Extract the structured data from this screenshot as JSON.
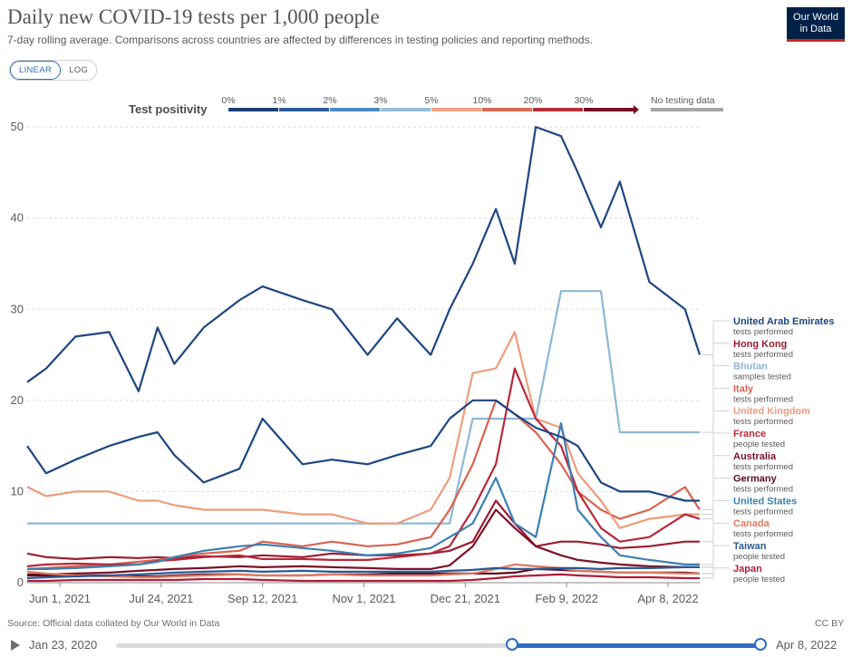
{
  "header": {
    "title": "Daily new COVID-19 tests per 1,000 people",
    "subtitle": "7-day rolling average. Comparisons across countries are affected by differences in testing policies and reporting methods.",
    "logo_line1": "Our World",
    "logo_line2": "in Data",
    "toggle_linear": "LINEAR",
    "toggle_log": "LOG"
  },
  "legend": {
    "label": "Test positivity",
    "bins": [
      {
        "label": "0%",
        "color": "#1c3f73"
      },
      {
        "label": "1%",
        "color": "#2a5996"
      },
      {
        "label": "2%",
        "color": "#4a8ac2"
      },
      {
        "label": "3%",
        "color": "#93bfd9"
      },
      {
        "label": "5%",
        "color": "#f0a27f"
      },
      {
        "label": "10%",
        "color": "#d96a55"
      },
      {
        "label": "20%",
        "color": "#b42f38"
      },
      {
        "label": "30%",
        "color": "#760d25"
      }
    ],
    "no_data_label": "No testing data",
    "no_data_color": "#a6a6a6"
  },
  "chart_data": {
    "type": "line",
    "x_ticks": [
      "Jun 1, 2021",
      "Jul 24, 2021",
      "Sep 12, 2021",
      "Nov 1, 2021",
      "Dec 21, 2021",
      "Feb 9, 2022",
      "Apr 8, 2022"
    ],
    "x_range": [
      "2021-05-23",
      "2022-04-08"
    ],
    "y_ticks": [
      0,
      10,
      20,
      30,
      40,
      50
    ],
    "ylim": [
      0,
      52
    ],
    "grid": "horizontal dashed",
    "x": [
      "2021-05-23",
      "2021-06-01",
      "2021-06-15",
      "2021-07-01",
      "2021-07-15",
      "2021-07-24",
      "2021-08-01",
      "2021-08-15",
      "2021-09-01",
      "2021-09-12",
      "2021-10-01",
      "2021-10-15",
      "2021-11-01",
      "2021-11-15",
      "2021-12-01",
      "2021-12-10",
      "2021-12-21",
      "2022-01-01",
      "2022-01-10",
      "2022-01-20",
      "2022-02-01",
      "2022-02-09",
      "2022-02-20",
      "2022-03-01",
      "2022-03-15",
      "2022-04-01",
      "2022-04-08"
    ],
    "series": [
      {
        "name": "United Arab Emirates",
        "note": "tests performed",
        "color": "#1d4680",
        "values": [
          22,
          23.5,
          27,
          27.5,
          21,
          28,
          24,
          28,
          31,
          32.5,
          31,
          30,
          25,
          29,
          25,
          30,
          35,
          41,
          35,
          50,
          49,
          45,
          39,
          44,
          33,
          30,
          25
        ]
      },
      {
        "name": "Hong Kong",
        "note": "tests performed",
        "color": "#9b1b30",
        "values": [
          3.2,
          2.8,
          2.6,
          2.8,
          2.7,
          2.8,
          2.7,
          2.9,
          2.8,
          3.0,
          2.8,
          3.2,
          3.0,
          3.0,
          3.2,
          3.5,
          4.5,
          9.0,
          6.5,
          4.0,
          4.5,
          4.5,
          4.2,
          3.8,
          4.0,
          4.5,
          4.5
        ]
      },
      {
        "name": "Bhutan",
        "note": "samples tested",
        "color": "#8db8d6",
        "values": [
          6.5,
          6.5,
          6.5,
          6.5,
          6.5,
          6.5,
          6.5,
          6.5,
          6.5,
          6.5,
          6.5,
          6.5,
          6.5,
          6.5,
          6.5,
          6.5,
          18,
          18,
          18,
          18,
          32,
          32,
          32,
          16.5,
          16.5,
          16.5,
          16.5
        ]
      },
      {
        "name": "Italy",
        "note": "tests performed",
        "color": "#d9624f",
        "values": [
          1.5,
          1.6,
          1.8,
          2.0,
          2.3,
          2.5,
          2.8,
          3.2,
          3.5,
          4.5,
          4.0,
          4.5,
          4.0,
          4.2,
          5.0,
          8.0,
          13.0,
          20.0,
          18.5,
          16.5,
          13.0,
          10.0,
          8.0,
          7.0,
          8.0,
          10.5,
          8.0
        ]
      },
      {
        "name": "United Kingdom",
        "note": "tests performed",
        "color": "#ee9c7c",
        "values": [
          10.5,
          9.5,
          10.0,
          10.0,
          9.0,
          9.0,
          8.5,
          8.0,
          8.0,
          8.0,
          7.5,
          7.5,
          6.5,
          6.5,
          8.0,
          11.5,
          23.0,
          23.5,
          27.5,
          18.0,
          17.0,
          12.0,
          9.0,
          6.0,
          7.0,
          7.5,
          7.5
        ]
      },
      {
        "name": "France",
        "note": "people tested",
        "color": "#b8283a",
        "values": [
          1.8,
          2.0,
          2.1,
          2.0,
          2.0,
          2.4,
          2.5,
          2.8,
          3.0,
          2.6,
          2.6,
          2.5,
          2.5,
          2.8,
          3.2,
          4.0,
          8.0,
          13.0,
          23.5,
          18.0,
          15.0,
          10.0,
          6.0,
          4.5,
          5.0,
          7.5,
          7.0
        ]
      },
      {
        "name": "Australia",
        "note": "tests performed",
        "color": "#7a1229",
        "values": [
          0.9,
          0.9,
          1.0,
          1.1,
          1.3,
          1.4,
          1.5,
          1.6,
          1.8,
          1.7,
          1.8,
          1.7,
          1.6,
          1.5,
          1.5,
          1.9,
          4.0,
          8.0,
          6.0,
          4.0,
          3.0,
          2.5,
          2.2,
          2.0,
          1.8,
          1.7,
          1.7
        ]
      },
      {
        "name": "Germany",
        "note": "tests performed",
        "color": "#5d0b1f",
        "values": [
          0.8,
          0.8,
          0.8,
          0.8,
          0.7,
          0.7,
          0.8,
          0.9,
          0.9,
          0.8,
          0.8,
          0.9,
          0.9,
          1.0,
          1.0,
          1.0,
          1.0,
          1.0,
          1.1,
          1.5,
          1.4,
          1.3,
          1.2,
          1.1,
          1.1,
          1.1,
          1.0
        ]
      },
      {
        "name": "United States",
        "note": "tests performed",
        "color": "#3d7fb2",
        "values": [
          1.5,
          1.5,
          1.6,
          1.8,
          2.0,
          2.3,
          2.8,
          3.5,
          4.0,
          4.2,
          3.8,
          3.5,
          3.0,
          3.2,
          3.8,
          5.0,
          6.5,
          11.5,
          6.5,
          5.0,
          17.5,
          8.0,
          5.0,
          3.0,
          2.5,
          2.0,
          2.0
        ]
      },
      {
        "name": "Canada",
        "note": "tests performed",
        "color": "#e07a5f",
        "values": [
          1.2,
          1.0,
          0.8,
          0.7,
          0.6,
          0.6,
          0.7,
          0.8,
          0.9,
          0.8,
          0.8,
          0.9,
          0.8,
          0.8,
          0.8,
          0.9,
          1.0,
          1.5,
          2.0,
          1.8,
          1.6,
          1.3,
          1.2,
          1.1,
          1.1,
          1.0,
          1.0
        ]
      },
      {
        "name": "Taiwan",
        "note": "people tested",
        "color": "#2b5a93",
        "values": [
          0.5,
          0.6,
          0.7,
          0.8,
          0.9,
          1.0,
          1.1,
          1.2,
          1.3,
          1.2,
          1.3,
          1.2,
          1.2,
          1.2,
          1.2,
          1.3,
          1.4,
          1.6,
          1.5,
          1.5,
          1.6,
          1.6,
          1.5,
          1.6,
          1.6,
          1.7,
          1.7
        ]
      },
      {
        "name": "Japan",
        "note": "people tested",
        "color": "#b01e3a",
        "values": [
          0.2,
          0.2,
          0.3,
          0.3,
          0.3,
          0.3,
          0.3,
          0.4,
          0.4,
          0.3,
          0.2,
          0.2,
          0.2,
          0.2,
          0.2,
          0.2,
          0.3,
          0.5,
          0.7,
          0.8,
          0.9,
          0.8,
          0.7,
          0.6,
          0.6,
          0.5,
          0.5
        ]
      },
      {
        "name": "",
        "note": "",
        "color": "#1d4680",
        "values": [
          15,
          12,
          13.5,
          15,
          16,
          16.5,
          14,
          11,
          12.5,
          18,
          13,
          13.5,
          13,
          14,
          15,
          18,
          20,
          20,
          18.5,
          17,
          16,
          15,
          11,
          10,
          10,
          9,
          9
        ]
      }
    ]
  },
  "footer": {
    "source": "Source: Official data collated by Our World in Data",
    "license": "CC BY"
  },
  "timeline": {
    "start_label": "Jan 23, 2020",
    "end_label": "Apr 8, 2022"
  }
}
